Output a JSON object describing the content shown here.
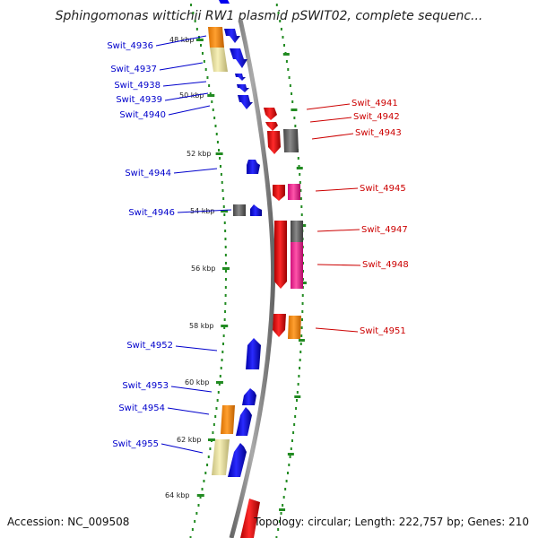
{
  "title": "Sphingomonas wittichii RW1 plasmid pSWIT02, complete sequenc...",
  "accession": "Accession: NC_009508",
  "topology": "Topology: circular; Length: 222,757 bp; Genes: 210",
  "kbp_labels": [
    "48 kbp",
    "50 kbp",
    "52 kbp",
    "54 kbp",
    "56 kbp",
    "58 kbp",
    "60 kbp",
    "62 kbp",
    "64 kbp"
  ],
  "left_genes": [
    "Swit_4936",
    "Swit_4937",
    "Swit_4938",
    "Swit_4939",
    "Swit_4940",
    "Swit_4944",
    "Swit_4946",
    "Swit_4952",
    "Swit_4953",
    "Swit_4954",
    "Swit_4955"
  ],
  "right_genes": [
    "Swit_4941",
    "Swit_4942",
    "Swit_4943",
    "Swit_4945",
    "Swit_4947",
    "Swit_4948",
    "Swit_4951"
  ],
  "colors": {
    "forward": "#0000ee",
    "reverse": "#ee0000",
    "orange": "#ff8c00",
    "khaki": "#eee8aa",
    "gray": "#666666",
    "magenta": "#ff1493",
    "backbone": "#888888",
    "ticks": "#228b22",
    "left_label": "#0000cc",
    "right_label": "#cc0000"
  }
}
